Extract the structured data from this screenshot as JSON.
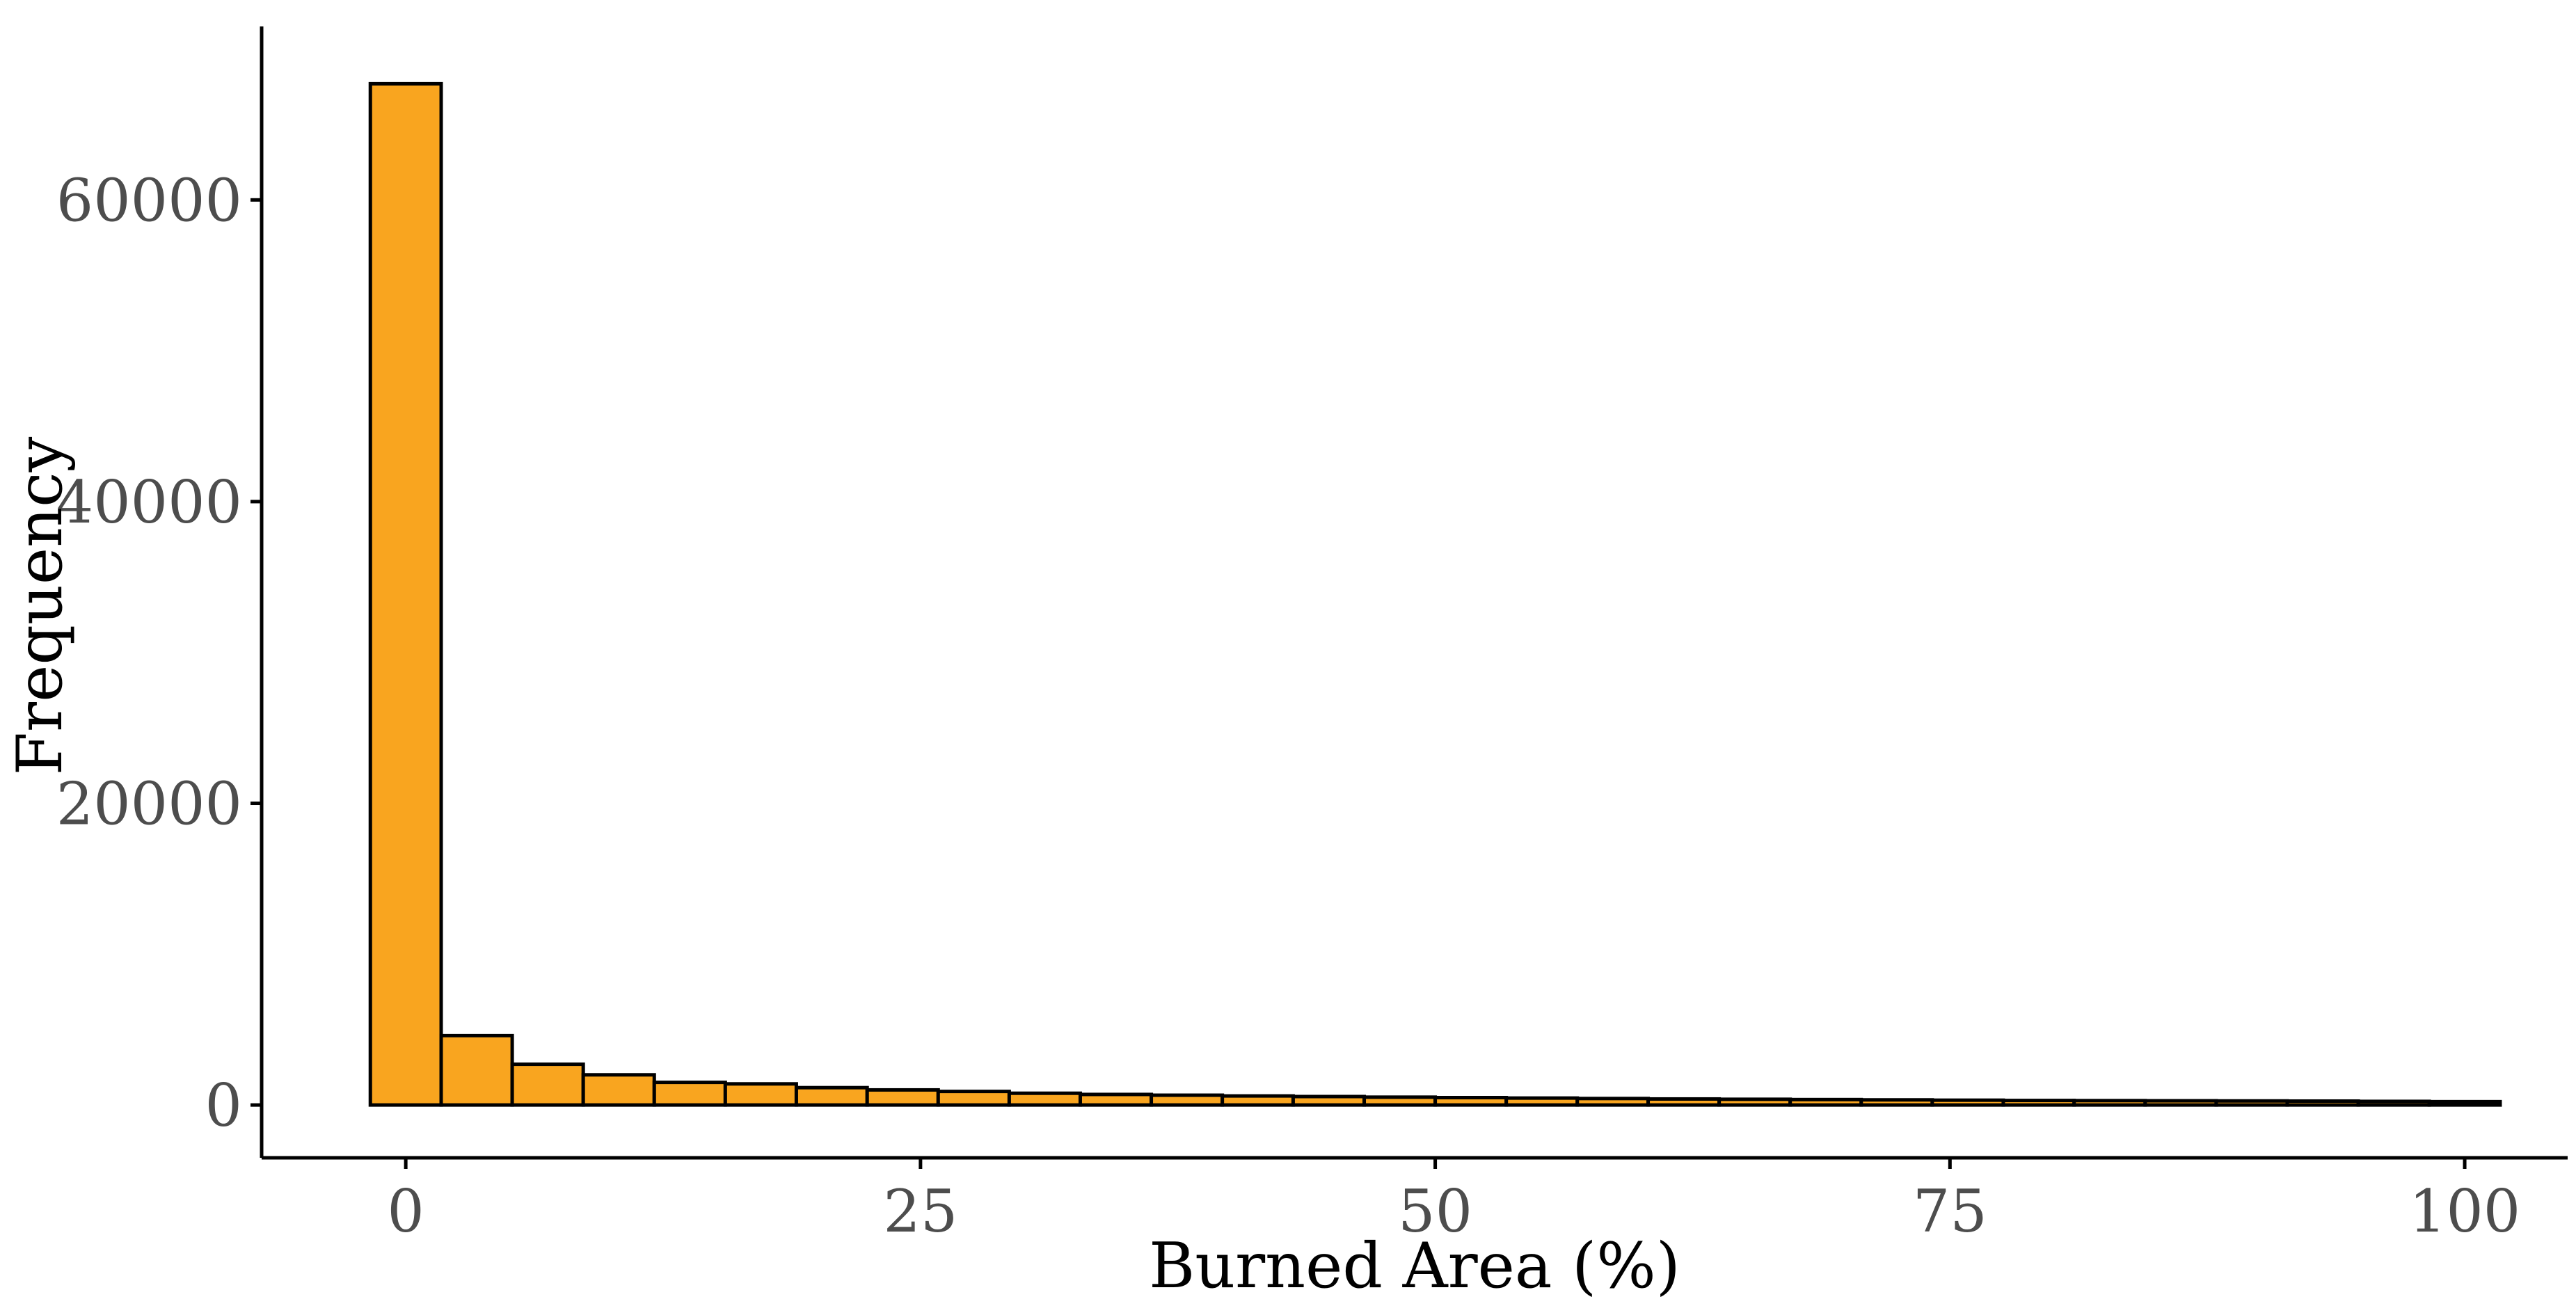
{
  "chart_data": {
    "type": "bar",
    "subtype": "histogram",
    "title": "",
    "xlabel": "Burned Area (%)",
    "ylabel": "Frequency",
    "xlim": [
      -7,
      105
    ],
    "ylim": [
      -3500,
      71500
    ],
    "x_ticks": [
      {
        "value": 0,
        "label": "0"
      },
      {
        "value": 25,
        "label": "25"
      },
      {
        "value": 50,
        "label": "50"
      },
      {
        "value": 75,
        "label": "75"
      },
      {
        "value": 100,
        "label": "100"
      }
    ],
    "y_ticks": [
      {
        "value": 0,
        "label": "0"
      },
      {
        "value": 20000,
        "label": "20000"
      },
      {
        "value": 40000,
        "label": "40000"
      },
      {
        "value": 60000,
        "label": "60000"
      }
    ],
    "bin_edges": [
      -1.72,
      1.72,
      5.17,
      8.62,
      12.07,
      15.52,
      18.97,
      22.41,
      25.86,
      29.31,
      32.76,
      36.21,
      39.66,
      43.1,
      46.55,
      50.0,
      53.45,
      56.9,
      60.34,
      63.79,
      67.24,
      70.69,
      74.14,
      77.59,
      81.03,
      84.48,
      87.93,
      91.38,
      94.83,
      98.28,
      101.72
    ],
    "values": [
      67700,
      4600,
      2700,
      2000,
      1500,
      1400,
      1150,
      1000,
      900,
      780,
      700,
      650,
      600,
      560,
      520,
      490,
      460,
      430,
      400,
      380,
      360,
      340,
      320,
      300,
      290,
      280,
      270,
      260,
      240,
      220
    ],
    "grid": false,
    "legend": "none",
    "colors": {
      "bar_fill": "#F9A51F",
      "bar_stroke": "#000000",
      "axis_line": "#000000",
      "tick_label": "#4d4d4d",
      "axis_title": "#000000"
    }
  }
}
